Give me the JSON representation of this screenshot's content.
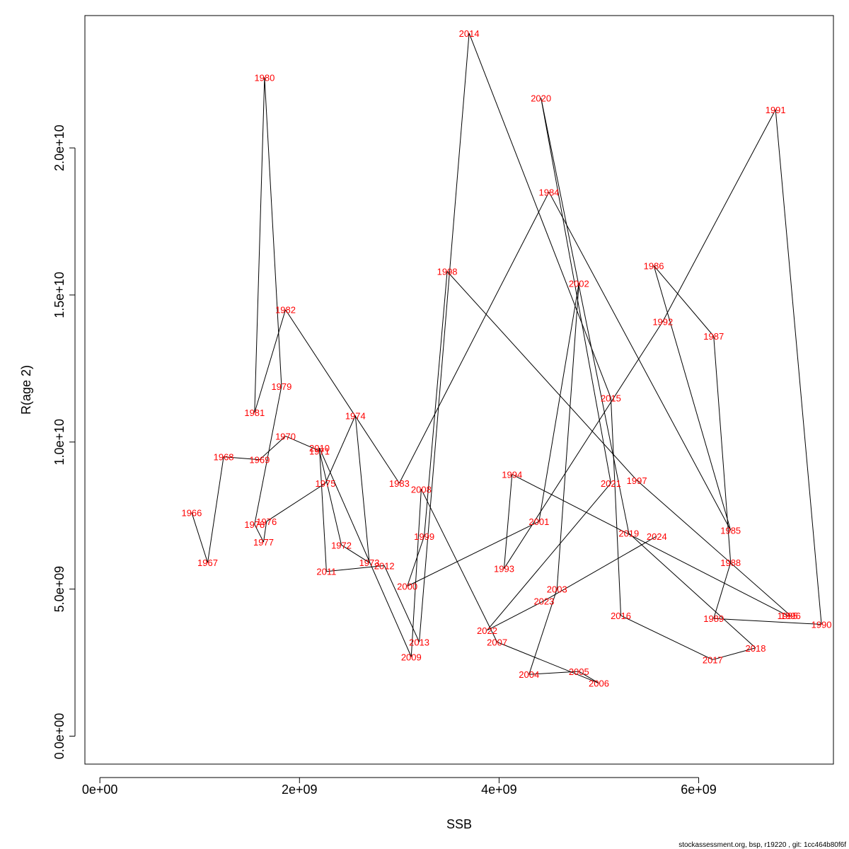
{
  "chart_data": {
    "type": "line",
    "xlabel": "SSB",
    "ylabel": "R(age 2)",
    "xlim": [
      -150000000.0,
      7350000000.0
    ],
    "ylim": [
      -950000000.0,
      24500000000.0
    ],
    "x_ticks": [
      0,
      2000000000.0,
      4000000000.0,
      6000000000.0
    ],
    "x_tick_labels": [
      "0e+00",
      "2e+09",
      "4e+09",
      "6e+09"
    ],
    "y_ticks": [
      0,
      5000000000.0,
      10000000000.0,
      15000000000.0,
      20000000000.0
    ],
    "y_tick_labels": [
      "0.0e+00",
      "5.0e+09",
      "1.0e+10",
      "1.5e+10",
      "2.0e+10"
    ],
    "grid": false,
    "line_color": "#000000",
    "label_color": "#ff0000",
    "points": [
      {
        "year": "1966",
        "x": 920000000.0,
        "y": 7600000000.0
      },
      {
        "year": "1967",
        "x": 1080000000.0,
        "y": 5900000000.0
      },
      {
        "year": "1968",
        "x": 1240000000.0,
        "y": 9500000000.0
      },
      {
        "year": "1969",
        "x": 1600000000.0,
        "y": 9400000000.0
      },
      {
        "year": "1970",
        "x": 1860000000.0,
        "y": 10200000000.0
      },
      {
        "year": "1971",
        "x": 2200000000.0,
        "y": 9700000000.0
      },
      {
        "year": "1972",
        "x": 2420000000.0,
        "y": 6500000000.0
      },
      {
        "year": "1973",
        "x": 2700000000.0,
        "y": 5900000000.0
      },
      {
        "year": "1974",
        "x": 2560000000.0,
        "y": 10900000000.0
      },
      {
        "year": "1975",
        "x": 2260000000.0,
        "y": 8600000000.0
      },
      {
        "year": "1976",
        "x": 1670000000.0,
        "y": 7300000000.0
      },
      {
        "year": "1977",
        "x": 1640000000.0,
        "y": 6600000000.0
      },
      {
        "year": "1978",
        "x": 1550000000.0,
        "y": 7200000000.0
      },
      {
        "year": "1979",
        "x": 1820000000.0,
        "y": 11900000000.0
      },
      {
        "year": "1980",
        "x": 1650000000.0,
        "y": 22400000000.0
      },
      {
        "year": "1981",
        "x": 1550000000.0,
        "y": 11000000000.0
      },
      {
        "year": "1982",
        "x": 1860000000.0,
        "y": 14500000000.0
      },
      {
        "year": "1983",
        "x": 3000000000.0,
        "y": 8600000000.0
      },
      {
        "year": "1984",
        "x": 4500000000.0,
        "y": 18500000000.0
      },
      {
        "year": "1985",
        "x": 6320000000.0,
        "y": 7000000000.0
      },
      {
        "year": "1986",
        "x": 5550000000.0,
        "y": 16000000000.0
      },
      {
        "year": "1987",
        "x": 6150000000.0,
        "y": 13600000000.0
      },
      {
        "year": "1988",
        "x": 6320000000.0,
        "y": 5900000000.0
      },
      {
        "year": "1989",
        "x": 6150000000.0,
        "y": 4000000000.0
      },
      {
        "year": "1990",
        "x": 7230000000.0,
        "y": 3800000000.0
      },
      {
        "year": "1991",
        "x": 6770000000.0,
        "y": 21300000000.0
      },
      {
        "year": "1992",
        "x": 5640000000.0,
        "y": 14100000000.0
      },
      {
        "year": "1993",
        "x": 4050000000.0,
        "y": 5700000000.0
      },
      {
        "year": "1994",
        "x": 4130000000.0,
        "y": 8900000000.0
      },
      {
        "year": "1995",
        "x": 6890000000.0,
        "y": 4100000000.0
      },
      {
        "year": "1996",
        "x": 6920000000.0,
        "y": 4100000000.0
      },
      {
        "year": "1997",
        "x": 5380000000.0,
        "y": 8700000000.0
      },
      {
        "year": "1998",
        "x": 3480000000.0,
        "y": 15800000000.0
      },
      {
        "year": "1999",
        "x": 3250000000.0,
        "y": 6800000000.0
      },
      {
        "year": "2000",
        "x": 3080000000.0,
        "y": 5100000000.0
      },
      {
        "year": "2001",
        "x": 4400000000.0,
        "y": 7300000000.0
      },
      {
        "year": "2002",
        "x": 4800000000.0,
        "y": 15400000000.0
      },
      {
        "year": "2003",
        "x": 4580000000.0,
        "y": 5000000000.0
      },
      {
        "year": "2004",
        "x": 4300000000.0,
        "y": 2100000000.0
      },
      {
        "year": "2005",
        "x": 4800000000.0,
        "y": 2200000000.0
      },
      {
        "year": "2006",
        "x": 5000000000.0,
        "y": 1800000000.0
      },
      {
        "year": "2007",
        "x": 3980000000.0,
        "y": 3200000000.0
      },
      {
        "year": "2008",
        "x": 3220000000.0,
        "y": 8400000000.0
      },
      {
        "year": "2009",
        "x": 3120000000.0,
        "y": 2700000000.0
      },
      {
        "year": "2010",
        "x": 2200000000.0,
        "y": 9800000000.0
      },
      {
        "year": "2011",
        "x": 2270000000.0,
        "y": 5600000000.0
      },
      {
        "year": "2012",
        "x": 2850000000.0,
        "y": 5800000000.0
      },
      {
        "year": "2013",
        "x": 3200000000.0,
        "y": 3200000000.0
      },
      {
        "year": "2014",
        "x": 3700000000.0,
        "y": 23900000000.0
      },
      {
        "year": "2015",
        "x": 5120000000.0,
        "y": 11500000000.0
      },
      {
        "year": "2016",
        "x": 5220000000.0,
        "y": 4100000000.0
      },
      {
        "year": "2017",
        "x": 6140000000.0,
        "y": 2600000000.0
      },
      {
        "year": "2018",
        "x": 6570000000.0,
        "y": 3000000000.0
      },
      {
        "year": "2019",
        "x": 5300000000.0,
        "y": 6900000000.0
      },
      {
        "year": "2020",
        "x": 4420000000.0,
        "y": 21700000000.0
      },
      {
        "year": "2021",
        "x": 5120000000.0,
        "y": 8600000000.0
      },
      {
        "year": "2022",
        "x": 3880000000.0,
        "y": 3600000000.0
      },
      {
        "year": "2023",
        "x": 4450000000.0,
        "y": 4600000000.0
      },
      {
        "year": "2024",
        "x": 5580000000.0,
        "y": 6800000000.0
      }
    ]
  },
  "footer": {
    "text": "stockassessment.org, bsp, r19220 , git: 1cc464b80f6f"
  }
}
